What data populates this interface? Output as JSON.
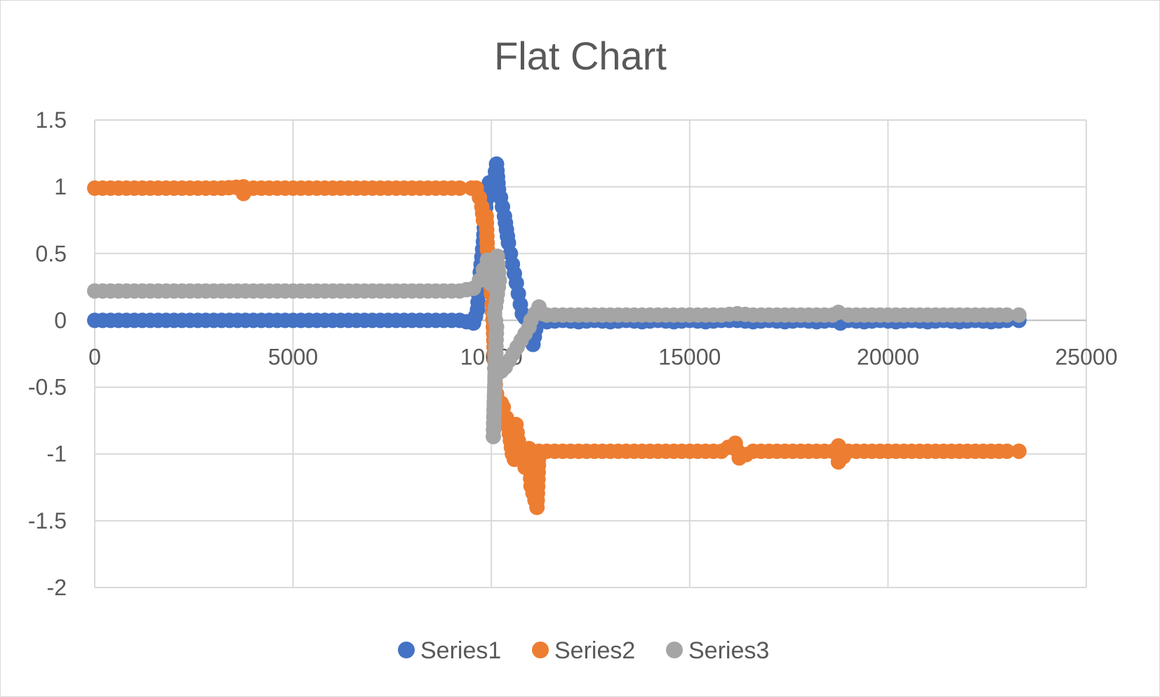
{
  "chart_data": {
    "type": "scatter",
    "title": "Flat Chart",
    "xlabel": "",
    "ylabel": "",
    "xlim": [
      0,
      25000
    ],
    "ylim": [
      -2,
      1.5
    ],
    "x_ticks": [
      0,
      5000,
      10000,
      15000,
      20000,
      25000
    ],
    "y_ticks": [
      1.5,
      1,
      0.5,
      0,
      -0.5,
      -1,
      -1.5,
      -2
    ],
    "grid": true,
    "legend_position": "bottom",
    "series": [
      {
        "name": "Series1",
        "color": "#4472C4",
        "points": [
          [
            0,
            0
          ],
          [
            400,
            0
          ],
          [
            800,
            0
          ],
          [
            1200,
            0
          ],
          [
            1600,
            0
          ],
          [
            2000,
            0
          ],
          [
            2400,
            0
          ],
          [
            2800,
            0
          ],
          [
            3200,
            0
          ],
          [
            3600,
            0
          ],
          [
            4000,
            0
          ],
          [
            4400,
            0
          ],
          [
            4800,
            0
          ],
          [
            5200,
            0
          ],
          [
            5600,
            0
          ],
          [
            6000,
            0
          ],
          [
            6400,
            0
          ],
          [
            6800,
            0
          ],
          [
            7200,
            0
          ],
          [
            7600,
            0
          ],
          [
            8000,
            0
          ],
          [
            8400,
            0
          ],
          [
            8800,
            0
          ],
          [
            9200,
            0
          ],
          [
            9550,
            -0.02
          ],
          [
            9650,
            0.08
          ],
          [
            9720,
            0.36
          ],
          [
            9800,
            0.59
          ],
          [
            9880,
            0.95
          ],
          [
            9950,
            1.03
          ],
          [
            10050,
            1.0
          ],
          [
            10130,
            1.17
          ],
          [
            10180,
            0.98
          ],
          [
            10230,
            0.92
          ],
          [
            10280,
            0.85
          ],
          [
            10330,
            0.78
          ],
          [
            10380,
            0.68
          ],
          [
            10430,
            0.58
          ],
          [
            10480,
            0.5
          ],
          [
            10530,
            0.42
          ],
          [
            10580,
            0.35
          ],
          [
            10630,
            0.28
          ],
          [
            10680,
            0.2
          ],
          [
            10730,
            0.12
          ],
          [
            10780,
            0.05
          ],
          [
            10850,
            0.02
          ],
          [
            10950,
            0.0
          ],
          [
            11000,
            -0.1
          ],
          [
            11050,
            -0.18
          ],
          [
            11150,
            -0.01
          ],
          [
            11400,
            -0.01
          ],
          [
            11800,
            0.0
          ],
          [
            12200,
            -0.01
          ],
          [
            12600,
            0.0
          ],
          [
            13000,
            -0.01
          ],
          [
            13400,
            0.0
          ],
          [
            13800,
            -0.01
          ],
          [
            14200,
            0.0
          ],
          [
            14600,
            -0.01
          ],
          [
            15000,
            0.0
          ],
          [
            15400,
            -0.01
          ],
          [
            15800,
            0.0
          ],
          [
            16200,
            0.0
          ],
          [
            16600,
            -0.01
          ],
          [
            17000,
            0.0
          ],
          [
            17400,
            -0.01
          ],
          [
            17800,
            0.0
          ],
          [
            18200,
            -0.01
          ],
          [
            18600,
            0.0
          ],
          [
            18800,
            -0.02
          ],
          [
            19000,
            0.0
          ],
          [
            19400,
            -0.01
          ],
          [
            19800,
            0.0
          ],
          [
            20200,
            -0.01
          ],
          [
            20600,
            0.0
          ],
          [
            21000,
            -0.01
          ],
          [
            21400,
            0.0
          ],
          [
            21800,
            -0.01
          ],
          [
            22200,
            0.0
          ],
          [
            22600,
            -0.01
          ],
          [
            23000,
            0.0
          ],
          [
            23300,
            0.0
          ]
        ]
      },
      {
        "name": "Series2",
        "color": "#ED7D31",
        "points": [
          [
            0,
            0.99
          ],
          [
            400,
            0.99
          ],
          [
            800,
            0.99
          ],
          [
            1200,
            0.99
          ],
          [
            1600,
            0.99
          ],
          [
            2000,
            0.99
          ],
          [
            2400,
            0.99
          ],
          [
            2800,
            0.99
          ],
          [
            3200,
            0.99
          ],
          [
            3750,
            1.0
          ],
          [
            3750,
            0.95
          ],
          [
            4000,
            0.99
          ],
          [
            4400,
            0.99
          ],
          [
            4800,
            0.99
          ],
          [
            5200,
            0.99
          ],
          [
            5600,
            0.99
          ],
          [
            6000,
            0.99
          ],
          [
            6400,
            0.99
          ],
          [
            6800,
            0.99
          ],
          [
            7200,
            0.99
          ],
          [
            7600,
            0.99
          ],
          [
            8000,
            0.99
          ],
          [
            8400,
            0.99
          ],
          [
            8800,
            0.99
          ],
          [
            9200,
            0.99
          ],
          [
            9500,
            0.99
          ],
          [
            9620,
            0.99
          ],
          [
            9700,
            0.92
          ],
          [
            9760,
            0.85
          ],
          [
            9800,
            0.75
          ],
          [
            9870,
            0.78
          ],
          [
            9900,
            0.53
          ],
          [
            9950,
            0.42
          ],
          [
            9970,
            0.3
          ],
          [
            10000,
            0.2
          ],
          [
            10020,
            0.12
          ],
          [
            10050,
            -0.05
          ],
          [
            10080,
            -0.3
          ],
          [
            10100,
            -0.48
          ],
          [
            10130,
            -0.55
          ],
          [
            10180,
            -0.67
          ],
          [
            10250,
            -0.62
          ],
          [
            10300,
            -0.65
          ],
          [
            10380,
            -0.73
          ],
          [
            10430,
            -0.8
          ],
          [
            10480,
            -0.9
          ],
          [
            10530,
            -1.0
          ],
          [
            10580,
            -1.04
          ],
          [
            10620,
            -0.78
          ],
          [
            10680,
            -0.9
          ],
          [
            10750,
            -1.0
          ],
          [
            10850,
            -1.1
          ],
          [
            10950,
            -0.96
          ],
          [
            11000,
            -1.24
          ],
          [
            11150,
            -1.4
          ],
          [
            11200,
            -0.98
          ],
          [
            11400,
            -0.98
          ],
          [
            11800,
            -0.98
          ],
          [
            12200,
            -0.98
          ],
          [
            12600,
            -0.98
          ],
          [
            13000,
            -0.98
          ],
          [
            13400,
            -0.98
          ],
          [
            13800,
            -0.98
          ],
          [
            14200,
            -0.98
          ],
          [
            14600,
            -0.98
          ],
          [
            15000,
            -0.98
          ],
          [
            15400,
            -0.98
          ],
          [
            15800,
            -0.98
          ],
          [
            16150,
            -0.92
          ],
          [
            16250,
            -1.03
          ],
          [
            16600,
            -0.98
          ],
          [
            17000,
            -0.98
          ],
          [
            17400,
            -0.98
          ],
          [
            17800,
            -0.98
          ],
          [
            18200,
            -0.98
          ],
          [
            18600,
            -0.98
          ],
          [
            18750,
            -0.94
          ],
          [
            18750,
            -1.06
          ],
          [
            19000,
            -0.98
          ],
          [
            19400,
            -0.98
          ],
          [
            19800,
            -0.98
          ],
          [
            20200,
            -0.98
          ],
          [
            20600,
            -0.98
          ],
          [
            21000,
            -0.98
          ],
          [
            21400,
            -0.98
          ],
          [
            21800,
            -0.98
          ],
          [
            22200,
            -0.98
          ],
          [
            22600,
            -0.98
          ],
          [
            23000,
            -0.98
          ],
          [
            23300,
            -0.98
          ]
        ]
      },
      {
        "name": "Series3",
        "color": "#A5A5A5",
        "points": [
          [
            0,
            0.22
          ],
          [
            400,
            0.22
          ],
          [
            800,
            0.22
          ],
          [
            1200,
            0.22
          ],
          [
            1600,
            0.22
          ],
          [
            2000,
            0.22
          ],
          [
            2400,
            0.22
          ],
          [
            2800,
            0.22
          ],
          [
            3200,
            0.22
          ],
          [
            3600,
            0.22
          ],
          [
            4000,
            0.22
          ],
          [
            4400,
            0.22
          ],
          [
            4800,
            0.22
          ],
          [
            5200,
            0.22
          ],
          [
            5600,
            0.22
          ],
          [
            6000,
            0.22
          ],
          [
            6400,
            0.22
          ],
          [
            6800,
            0.22
          ],
          [
            7200,
            0.22
          ],
          [
            7600,
            0.22
          ],
          [
            8000,
            0.22
          ],
          [
            8400,
            0.22
          ],
          [
            8800,
            0.22
          ],
          [
            9200,
            0.22
          ],
          [
            9550,
            0.24
          ],
          [
            9700,
            0.3
          ],
          [
            9800,
            0.38
          ],
          [
            9900,
            0.45
          ],
          [
            9950,
            0.33
          ],
          [
            10000,
            0.27
          ],
          [
            10050,
            0.3
          ],
          [
            10100,
            0.42
          ],
          [
            10150,
            0.48
          ],
          [
            10200,
            0.3
          ],
          [
            10080,
            0.05
          ],
          [
            10130,
            -0.05
          ],
          [
            10050,
            -0.87
          ],
          [
            10100,
            -0.35
          ],
          [
            10150,
            -0.4
          ],
          [
            10250,
            -0.38
          ],
          [
            10350,
            -0.35
          ],
          [
            10450,
            -0.3
          ],
          [
            10550,
            -0.25
          ],
          [
            10650,
            -0.2
          ],
          [
            10750,
            -0.15
          ],
          [
            10850,
            -0.1
          ],
          [
            10950,
            -0.05
          ],
          [
            11000,
            0.0
          ],
          [
            11100,
            0.05
          ],
          [
            11200,
            0.1
          ],
          [
            11300,
            0.05
          ],
          [
            11400,
            0.04
          ],
          [
            11800,
            0.04
          ],
          [
            12200,
            0.04
          ],
          [
            12600,
            0.04
          ],
          [
            13000,
            0.04
          ],
          [
            13400,
            0.04
          ],
          [
            13800,
            0.04
          ],
          [
            14200,
            0.04
          ],
          [
            14600,
            0.04
          ],
          [
            15000,
            0.04
          ],
          [
            15400,
            0.04
          ],
          [
            15800,
            0.04
          ],
          [
            16200,
            0.05
          ],
          [
            16600,
            0.04
          ],
          [
            17000,
            0.04
          ],
          [
            17400,
            0.04
          ],
          [
            17800,
            0.04
          ],
          [
            18200,
            0.04
          ],
          [
            18600,
            0.04
          ],
          [
            18750,
            0.06
          ],
          [
            19000,
            0.04
          ],
          [
            19400,
            0.04
          ],
          [
            19800,
            0.04
          ],
          [
            20200,
            0.04
          ],
          [
            20600,
            0.04
          ],
          [
            21000,
            0.04
          ],
          [
            21400,
            0.04
          ],
          [
            21800,
            0.04
          ],
          [
            22200,
            0.04
          ],
          [
            22600,
            0.04
          ],
          [
            23000,
            0.04
          ],
          [
            23300,
            0.04
          ]
        ]
      }
    ]
  }
}
